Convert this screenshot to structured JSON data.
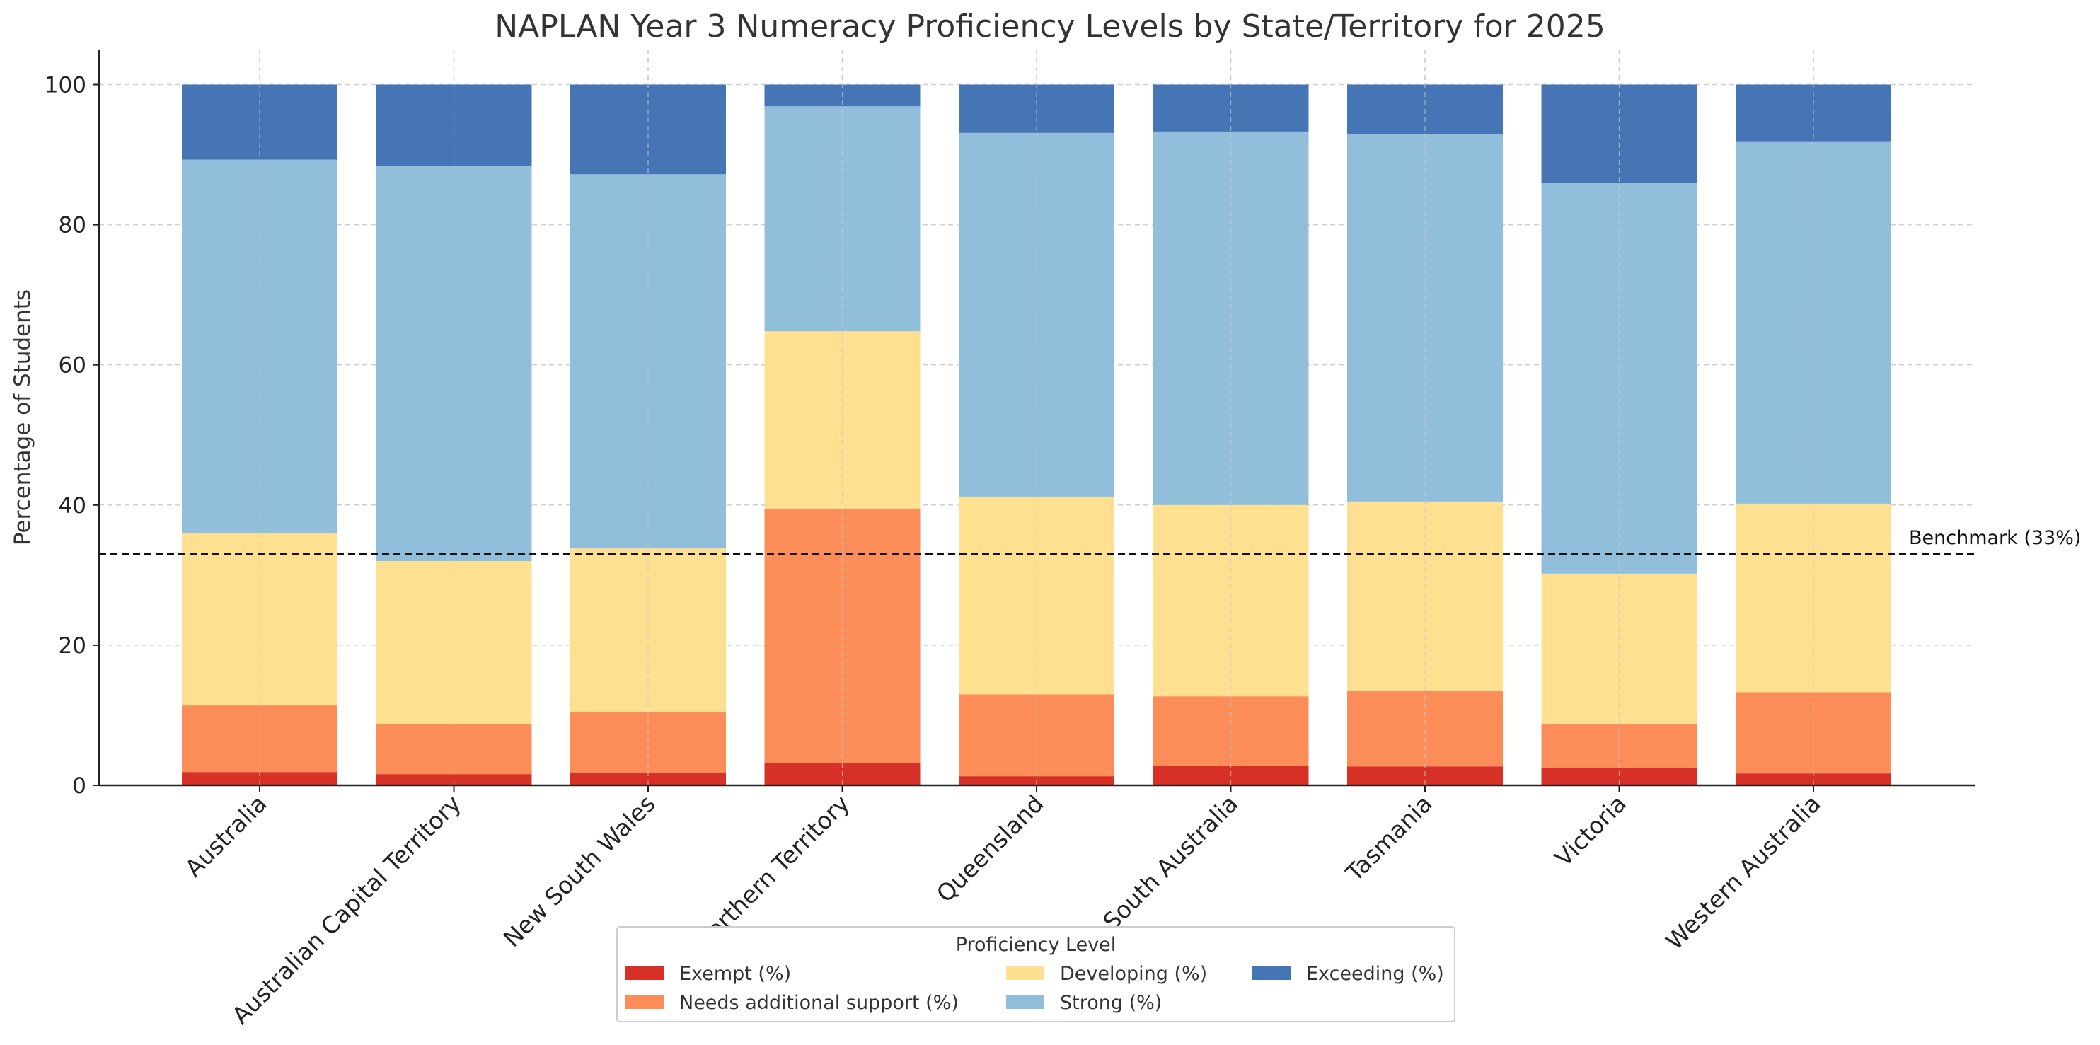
{
  "chart_data": {
    "type": "bar",
    "stacked": true,
    "title": "NAPLAN Year 3 Numeracy Proficiency Levels by State/Territory for 2025",
    "xlabel": "",
    "ylabel": "Percentage of Students",
    "ylim": [
      0,
      105
    ],
    "yticks": [
      0,
      20,
      40,
      60,
      80,
      100
    ],
    "grid": true,
    "categories": [
      "Australia",
      "Australian Capital Territory",
      "New South Wales",
      "Northern Territory",
      "Queensland",
      "South Australia",
      "Tasmania",
      "Victoria",
      "Western Australia"
    ],
    "series": [
      {
        "name": "Exempt (%)",
        "color": "#d73027",
        "values": [
          1.9,
          1.6,
          1.8,
          3.2,
          1.3,
          2.8,
          2.7,
          2.5,
          1.7
        ]
      },
      {
        "name": "Needs additional support (%)",
        "color": "#fc8d59",
        "values": [
          9.5,
          7.1,
          8.7,
          36.3,
          11.7,
          9.9,
          10.8,
          6.3,
          11.6
        ]
      },
      {
        "name": "Developing (%)",
        "color": "#fee090",
        "values": [
          24.6,
          23.3,
          23.3,
          25.3,
          28.2,
          27.3,
          27.0,
          21.4,
          26.9
        ]
      },
      {
        "name": "Strong (%)",
        "color": "#91bfdb",
        "values": [
          53.3,
          56.4,
          53.4,
          32.1,
          51.9,
          53.3,
          52.4,
          55.8,
          51.7
        ]
      },
      {
        "name": "Exceeding (%)",
        "color": "#4575b4",
        "values": [
          10.7,
          11.6,
          12.8,
          3.1,
          6.9,
          6.7,
          7.1,
          14.0,
          8.1
        ]
      }
    ],
    "benchmark": {
      "value": 33,
      "label": "Benchmark (33%)"
    },
    "legend": {
      "title": "Proficiency Level",
      "placement": "bottom-center",
      "columns": 3
    }
  }
}
